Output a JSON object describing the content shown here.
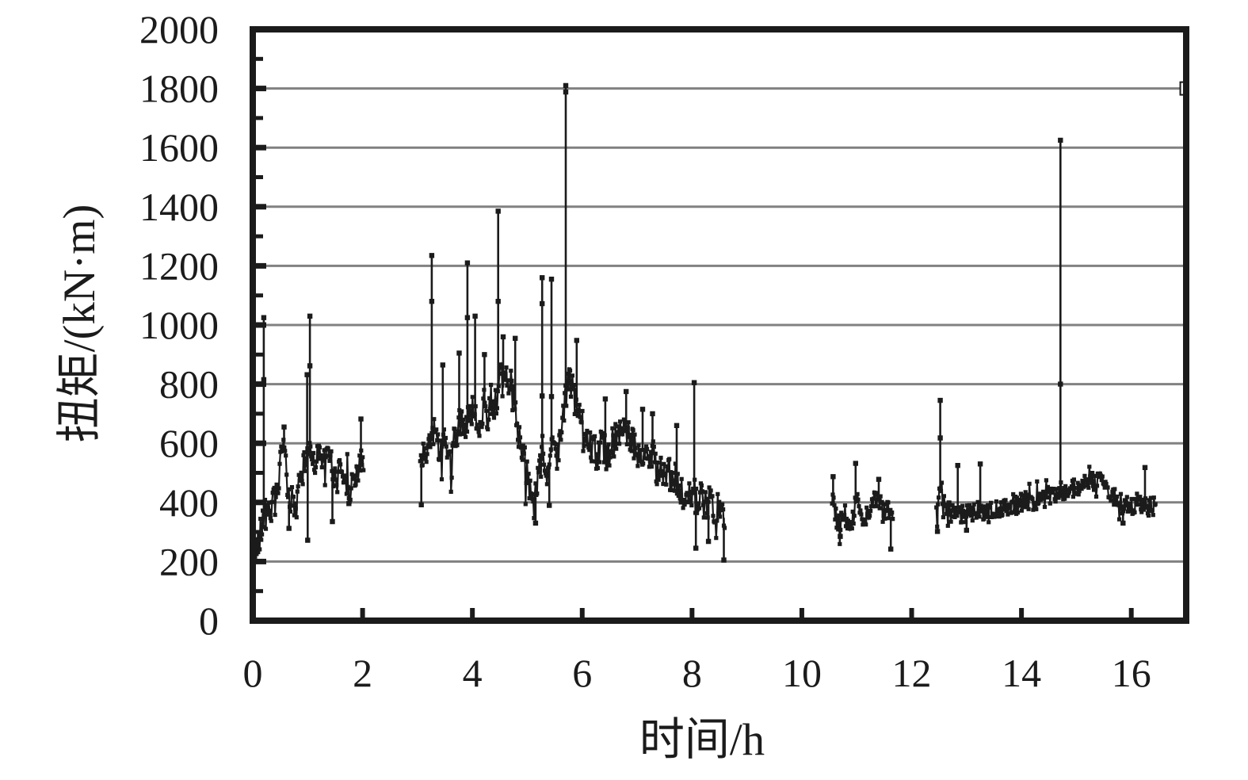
{
  "chart_data": {
    "type": "line",
    "title": "",
    "xlabel": "时间/h",
    "ylabel": "扭矩/(kN·m)",
    "xlim": [
      0,
      17
    ],
    "ylim": [
      0,
      2000
    ],
    "x_ticks": [
      0,
      2,
      4,
      6,
      8,
      10,
      12,
      14,
      16
    ],
    "y_ticks": [
      0,
      200,
      400,
      600,
      800,
      1000,
      1200,
      1400,
      1600,
      1800,
      2000
    ],
    "grid": "horizontal gray lines every 200, minor y ticks every 100, x ticks every 2",
    "grid_step": 200,
    "legend": "none",
    "series_color": "#1b1b1b",
    "axis_color": "#1b1b1b",
    "grid_color": "#818181",
    "marker": "small filled square",
    "noise": {
      "seed": 42,
      "step": 0.014,
      "extra_prob": 0.07,
      "extra_scale": 1.7
    },
    "segments": [
      {
        "name": "segment-0-2h",
        "jitter": 45,
        "anchors": [
          [
            0.0,
            250
          ],
          [
            0.03,
            232
          ],
          [
            0.07,
            248
          ],
          [
            0.1,
            260
          ],
          [
            0.14,
            300
          ],
          [
            0.18,
            345
          ],
          [
            0.22,
            380
          ],
          [
            0.27,
            390
          ],
          [
            0.32,
            365
          ],
          [
            0.38,
            405
          ],
          [
            0.45,
            430
          ],
          [
            0.52,
            555
          ],
          [
            0.57,
            600
          ],
          [
            0.62,
            480
          ],
          [
            0.67,
            385
          ],
          [
            0.72,
            440
          ],
          [
            0.78,
            345
          ],
          [
            0.83,
            450
          ],
          [
            0.88,
            480
          ],
          [
            0.93,
            520
          ],
          [
            0.98,
            555
          ],
          [
            1.03,
            595
          ],
          [
            1.08,
            560
          ],
          [
            1.13,
            540
          ],
          [
            1.2,
            560
          ],
          [
            1.28,
            540
          ],
          [
            1.35,
            558
          ],
          [
            1.42,
            540
          ],
          [
            1.5,
            472
          ],
          [
            1.57,
            520
          ],
          [
            1.65,
            500
          ],
          [
            1.72,
            468
          ],
          [
            1.78,
            432
          ],
          [
            1.85,
            490
          ],
          [
            1.92,
            518
          ],
          [
            1.97,
            538
          ],
          [
            2.02,
            500
          ]
        ]
      },
      {
        "name": "segment-3-8.6h",
        "jitter": 55,
        "anchors": [
          [
            3.05,
            560
          ],
          [
            3.08,
            500
          ],
          [
            3.12,
            570
          ],
          [
            3.16,
            555
          ],
          [
            3.2,
            600
          ],
          [
            3.26,
            620
          ],
          [
            3.32,
            645
          ],
          [
            3.38,
            600
          ],
          [
            3.44,
            565
          ],
          [
            3.5,
            615
          ],
          [
            3.56,
            560
          ],
          [
            3.62,
            505
          ],
          [
            3.68,
            615
          ],
          [
            3.74,
            650
          ],
          [
            3.8,
            680
          ],
          [
            3.86,
            660
          ],
          [
            3.92,
            700
          ],
          [
            3.98,
            715
          ],
          [
            4.04,
            680
          ],
          [
            4.1,
            655
          ],
          [
            4.16,
            700
          ],
          [
            4.22,
            735
          ],
          [
            4.28,
            700
          ],
          [
            4.34,
            755
          ],
          [
            4.4,
            725
          ],
          [
            4.46,
            775
          ],
          [
            4.52,
            815
          ],
          [
            4.58,
            775
          ],
          [
            4.64,
            830
          ],
          [
            4.7,
            795
          ],
          [
            4.76,
            735
          ],
          [
            4.82,
            655
          ],
          [
            4.88,
            600
          ],
          [
            4.94,
            560
          ],
          [
            5.0,
            485
          ],
          [
            5.06,
            425
          ],
          [
            5.12,
            385
          ],
          [
            5.18,
            450
          ],
          [
            5.24,
            520
          ],
          [
            5.3,
            560
          ],
          [
            5.36,
            485
          ],
          [
            5.42,
            555
          ],
          [
            5.48,
            595
          ],
          [
            5.54,
            565
          ],
          [
            5.6,
            620
          ],
          [
            5.66,
            700
          ],
          [
            5.72,
            775
          ],
          [
            5.78,
            815
          ],
          [
            5.84,
            760
          ],
          [
            5.9,
            720
          ],
          [
            5.96,
            680
          ],
          [
            6.02,
            645
          ],
          [
            6.08,
            620
          ],
          [
            6.14,
            600
          ],
          [
            6.2,
            580
          ],
          [
            6.26,
            562
          ],
          [
            6.32,
            580
          ],
          [
            6.38,
            600
          ],
          [
            6.44,
            565
          ],
          [
            6.5,
            580
          ],
          [
            6.56,
            600
          ],
          [
            6.62,
            620
          ],
          [
            6.68,
            648
          ],
          [
            6.74,
            678
          ],
          [
            6.8,
            650
          ],
          [
            6.86,
            622
          ],
          [
            6.92,
            600
          ],
          [
            6.98,
            582
          ],
          [
            7.04,
            562
          ],
          [
            7.1,
            580
          ],
          [
            7.16,
            560
          ],
          [
            7.22,
            542
          ],
          [
            7.28,
            560
          ],
          [
            7.34,
            522
          ],
          [
            7.4,
            502
          ],
          [
            7.46,
            520
          ],
          [
            7.52,
            482
          ],
          [
            7.58,
            500
          ],
          [
            7.64,
            462
          ],
          [
            7.7,
            480
          ],
          [
            7.76,
            442
          ],
          [
            7.82,
            422
          ],
          [
            7.88,
            405
          ],
          [
            7.94,
            420
          ],
          [
            8.0,
            440
          ],
          [
            8.06,
            420
          ],
          [
            8.12,
            400
          ],
          [
            8.18,
            420
          ],
          [
            8.24,
            382
          ],
          [
            8.3,
            400
          ],
          [
            8.36,
            380
          ],
          [
            8.42,
            362
          ],
          [
            8.48,
            380
          ],
          [
            8.54,
            360
          ],
          [
            8.6,
            342
          ]
        ]
      },
      {
        "name": "segment-10.5-11.7h",
        "jitter": 35,
        "anchors": [
          [
            10.55,
            420
          ],
          [
            10.58,
            385
          ],
          [
            10.62,
            352
          ],
          [
            10.66,
            335
          ],
          [
            10.7,
            322
          ],
          [
            10.74,
            355
          ],
          [
            10.78,
            360
          ],
          [
            10.82,
            342
          ],
          [
            10.86,
            330
          ],
          [
            10.9,
            332
          ],
          [
            10.94,
            360
          ],
          [
            10.98,
            395
          ],
          [
            11.02,
            400
          ],
          [
            11.06,
            372
          ],
          [
            11.1,
            350
          ],
          [
            11.14,
            352
          ],
          [
            11.18,
            360
          ],
          [
            11.22,
            370
          ],
          [
            11.26,
            380
          ],
          [
            11.3,
            398
          ],
          [
            11.34,
            408
          ],
          [
            11.38,
            418
          ],
          [
            11.42,
            392
          ],
          [
            11.46,
            372
          ],
          [
            11.5,
            368
          ],
          [
            11.54,
            388
          ],
          [
            11.58,
            372
          ],
          [
            11.62,
            352
          ],
          [
            11.66,
            360
          ]
        ]
      },
      {
        "name": "segment-12.45-16.45h",
        "jitter": 33,
        "anchors": [
          [
            12.45,
            382
          ],
          [
            12.49,
            418
          ],
          [
            12.53,
            450
          ],
          [
            12.57,
            415
          ],
          [
            12.61,
            398
          ],
          [
            12.66,
            372
          ],
          [
            12.72,
            360
          ],
          [
            12.78,
            368
          ],
          [
            12.84,
            378
          ],
          [
            12.9,
            362
          ],
          [
            12.96,
            352
          ],
          [
            13.02,
            360
          ],
          [
            13.08,
            370
          ],
          [
            13.14,
            360
          ],
          [
            13.2,
            368
          ],
          [
            13.26,
            378
          ],
          [
            13.32,
            370
          ],
          [
            13.38,
            360
          ],
          [
            13.44,
            368
          ],
          [
            13.5,
            378
          ],
          [
            13.56,
            370
          ],
          [
            13.62,
            380
          ],
          [
            13.68,
            390
          ],
          [
            13.74,
            382
          ],
          [
            13.8,
            390
          ],
          [
            13.86,
            400
          ],
          [
            13.92,
            392
          ],
          [
            13.98,
            400
          ],
          [
            14.04,
            408
          ],
          [
            14.1,
            400
          ],
          [
            14.16,
            408
          ],
          [
            14.22,
            400
          ],
          [
            14.28,
            410
          ],
          [
            14.34,
            418
          ],
          [
            14.4,
            410
          ],
          [
            14.46,
            420
          ],
          [
            14.52,
            428
          ],
          [
            14.58,
            420
          ],
          [
            14.64,
            438
          ],
          [
            14.7,
            448
          ],
          [
            14.76,
            440
          ],
          [
            14.82,
            432
          ],
          [
            14.88,
            440
          ],
          [
            14.94,
            450
          ],
          [
            15.0,
            442
          ],
          [
            15.06,
            450
          ],
          [
            15.12,
            458
          ],
          [
            15.18,
            468
          ],
          [
            15.24,
            478
          ],
          [
            15.3,
            470
          ],
          [
            15.36,
            478
          ],
          [
            15.42,
            470
          ],
          [
            15.48,
            462
          ],
          [
            15.54,
            452
          ],
          [
            15.6,
            442
          ],
          [
            15.66,
            422
          ],
          [
            15.72,
            412
          ],
          [
            15.78,
            402
          ],
          [
            15.84,
            392
          ],
          [
            15.9,
            400
          ],
          [
            15.96,
            392
          ],
          [
            16.02,
            382
          ],
          [
            16.08,
            390
          ],
          [
            16.14,
            382
          ],
          [
            16.2,
            398
          ],
          [
            16.26,
            392
          ],
          [
            16.32,
            382
          ],
          [
            16.38,
            390
          ],
          [
            16.44,
            386
          ]
        ]
      }
    ],
    "spikes": [
      {
        "t": 0.2,
        "peak": 1025,
        "mids": [
          815
        ]
      },
      {
        "t": 0.57,
        "peak": 655
      },
      {
        "t": 0.99,
        "peak": 832
      },
      {
        "t": 1.04,
        "peak": 1030,
        "mids": [
          862
        ]
      },
      {
        "t": 1.97,
        "peak": 682
      },
      {
        "t": 0.66,
        "low": 312
      },
      {
        "t": 1.0,
        "low": 272
      },
      {
        "t": 1.45,
        "low": 335
      },
      {
        "t": 1.75,
        "low": 396
      },
      {
        "t": 3.07,
        "low": 392
      },
      {
        "t": 3.26,
        "peak": 1235,
        "mids": [
          1080
        ]
      },
      {
        "t": 3.46,
        "peak": 865
      },
      {
        "t": 3.76,
        "peak": 905
      },
      {
        "t": 3.91,
        "peak": 1210,
        "mids": [
          1025
        ]
      },
      {
        "t": 4.05,
        "peak": 1030
      },
      {
        "t": 4.22,
        "peak": 900
      },
      {
        "t": 4.47,
        "peak": 1385,
        "mids": [
          1080
        ]
      },
      {
        "t": 4.56,
        "peak": 960
      },
      {
        "t": 4.78,
        "peak": 955
      },
      {
        "t": 5.15,
        "low": 330
      },
      {
        "t": 5.27,
        "peak": 1160,
        "mids": [
          1072,
          760
        ]
      },
      {
        "t": 5.4,
        "low": 390
      },
      {
        "t": 5.44,
        "peak": 1155,
        "mids": [
          758
        ]
      },
      {
        "t": 5.7,
        "peak": 1810,
        "mids": [
          1788
        ]
      },
      {
        "t": 5.9,
        "peak": 948
      },
      {
        "t": 6.42,
        "peak": 750
      },
      {
        "t": 6.8,
        "peak": 775
      },
      {
        "t": 7.1,
        "peak": 715
      },
      {
        "t": 7.28,
        "peak": 700
      },
      {
        "t": 7.72,
        "peak": 660
      },
      {
        "t": 8.04,
        "peak": 805
      },
      {
        "t": 8.07,
        "low": 245
      },
      {
        "t": 8.3,
        "low": 268
      },
      {
        "t": 8.58,
        "low": 205
      },
      {
        "t": 10.57,
        "peak": 487
      },
      {
        "t": 10.7,
        "low": 285
      },
      {
        "t": 10.98,
        "peak": 532
      },
      {
        "t": 11.4,
        "peak": 478
      },
      {
        "t": 11.62,
        "low": 242
      },
      {
        "t": 12.47,
        "low": 302
      },
      {
        "t": 12.52,
        "peak": 745,
        "mids": [
          618
        ]
      },
      {
        "t": 12.84,
        "peak": 525
      },
      {
        "t": 13.0,
        "low": 306
      },
      {
        "t": 13.25,
        "peak": 530
      },
      {
        "t": 14.71,
        "peak": 1625,
        "mids": [
          800
        ]
      },
      {
        "t": 15.85,
        "low": 330
      },
      {
        "t": 16.25,
        "peak": 518
      }
    ],
    "stray_point": {
      "t": 16.95,
      "value": 1800,
      "marker": "open-square-on-right-axis"
    }
  }
}
